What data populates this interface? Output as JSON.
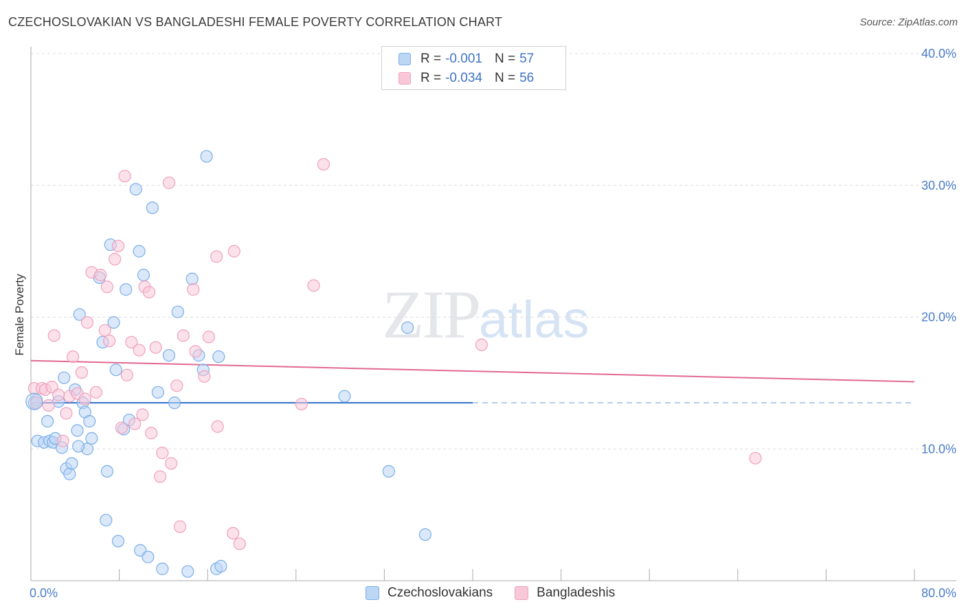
{
  "title": "CZECHOSLOVAKIAN VS BANGLADESHI FEMALE POVERTY CORRELATION CHART",
  "source": "Source: ZipAtlas.com",
  "watermark": {
    "zip": "ZIP",
    "atlas": "atlas"
  },
  "legend": {
    "rows": [
      {
        "r_label": "R =",
        "r_value": "-0.001",
        "n_label": "N =",
        "n_value": "57"
      },
      {
        "r_label": "R =",
        "r_value": "-0.034",
        "n_label": "N =",
        "n_value": "56"
      }
    ]
  },
  "bottom_legend": [
    "Czechoslovakians",
    "Bangladeshis"
  ],
  "colors": {
    "blue": "#7aaee8",
    "blue_fill": "#bcd6f5",
    "blue_line": "#2e6fc9",
    "pink": "#f0a0bc",
    "pink_fill": "#f8c8d8",
    "pink_line": "#e2688f"
  },
  "chart_data": {
    "type": "scatter",
    "title": "CZECHOSLOVAKIAN VS BANGLADESHI FEMALE POVERTY CORRELATION CHART",
    "xlabel": "",
    "ylabel": "Female Poverty",
    "xlim": [
      0,
      80
    ],
    "ylim": [
      0,
      40
    ],
    "x_tick_labels": [
      "0.0%",
      "80.0%"
    ],
    "y_ticks": [
      10,
      20,
      30,
      40
    ],
    "y_tick_labels": [
      "10.0%",
      "20.0%",
      "30.0%",
      "40.0%"
    ],
    "series": [
      {
        "name": "Czechoslovakians",
        "trend": {
          "x": [
            0,
            40
          ],
          "y": [
            13.5,
            13.5
          ],
          "dashed_to": 80
        },
        "points": [
          [
            0.3,
            13.5
          ],
          [
            0.5,
            13.7
          ],
          [
            0.6,
            10.6
          ],
          [
            1.2,
            10.5
          ],
          [
            1.5,
            12.1
          ],
          [
            1.7,
            10.6
          ],
          [
            2.0,
            10.5
          ],
          [
            2.2,
            10.8
          ],
          [
            2.5,
            13.6
          ],
          [
            2.8,
            10.1
          ],
          [
            3.0,
            15.4
          ],
          [
            3.2,
            8.5
          ],
          [
            3.5,
            8.1
          ],
          [
            3.7,
            8.9
          ],
          [
            4.0,
            14.5
          ],
          [
            4.2,
            11.4
          ],
          [
            4.4,
            20.2
          ],
          [
            4.7,
            13.5
          ],
          [
            4.9,
            12.8
          ],
          [
            5.1,
            10.0
          ],
          [
            5.3,
            12.1
          ],
          [
            5.5,
            10.8
          ],
          [
            6.2,
            23.0
          ],
          [
            6.5,
            18.1
          ],
          [
            6.8,
            4.6
          ],
          [
            6.9,
            8.3
          ],
          [
            7.2,
            25.5
          ],
          [
            7.5,
            19.6
          ],
          [
            7.7,
            16.0
          ],
          [
            7.9,
            3.0
          ],
          [
            8.4,
            11.5
          ],
          [
            8.6,
            22.1
          ],
          [
            8.9,
            12.2
          ],
          [
            9.5,
            29.7
          ],
          [
            9.8,
            25.0
          ],
          [
            9.9,
            2.3
          ],
          [
            10.2,
            23.2
          ],
          [
            10.6,
            1.8
          ],
          [
            11.0,
            28.3
          ],
          [
            11.5,
            14.3
          ],
          [
            11.9,
            0.9
          ],
          [
            12.5,
            17.1
          ],
          [
            13.0,
            13.5
          ],
          [
            13.3,
            20.4
          ],
          [
            14.2,
            0.7
          ],
          [
            14.6,
            22.9
          ],
          [
            15.2,
            17.1
          ],
          [
            15.6,
            16.0
          ],
          [
            15.9,
            32.2
          ],
          [
            16.8,
            0.9
          ],
          [
            17.2,
            1.1
          ],
          [
            28.4,
            14.0
          ],
          [
            32.4,
            8.3
          ],
          [
            34.1,
            19.2
          ],
          [
            35.7,
            3.5
          ],
          [
            17.0,
            17.0
          ],
          [
            4.3,
            10.2
          ]
        ]
      },
      {
        "name": "Bangladeshis",
        "trend": {
          "x": [
            0,
            80
          ],
          "y": [
            16.7,
            15.1
          ]
        },
        "points": [
          [
            0.3,
            14.6
          ],
          [
            0.5,
            13.5
          ],
          [
            1.0,
            14.6
          ],
          [
            1.3,
            14.5
          ],
          [
            1.6,
            13.3
          ],
          [
            1.9,
            14.7
          ],
          [
            2.1,
            18.6
          ],
          [
            2.5,
            14.1
          ],
          [
            2.9,
            10.6
          ],
          [
            3.2,
            12.7
          ],
          [
            3.5,
            14.0
          ],
          [
            3.8,
            17.0
          ],
          [
            4.2,
            14.2
          ],
          [
            4.6,
            15.8
          ],
          [
            4.9,
            13.8
          ],
          [
            5.1,
            19.6
          ],
          [
            5.5,
            23.4
          ],
          [
            5.9,
            14.3
          ],
          [
            6.3,
            23.2
          ],
          [
            6.7,
            19.0
          ],
          [
            6.9,
            22.3
          ],
          [
            7.1,
            18.2
          ],
          [
            7.6,
            24.4
          ],
          [
            7.9,
            25.4
          ],
          [
            8.2,
            11.6
          ],
          [
            8.5,
            30.7
          ],
          [
            8.7,
            15.6
          ],
          [
            9.1,
            18.1
          ],
          [
            9.4,
            11.9
          ],
          [
            9.8,
            17.5
          ],
          [
            10.1,
            12.6
          ],
          [
            10.3,
            22.3
          ],
          [
            10.7,
            21.9
          ],
          [
            10.9,
            11.2
          ],
          [
            11.3,
            17.7
          ],
          [
            11.7,
            7.9
          ],
          [
            11.9,
            9.7
          ],
          [
            12.5,
            30.2
          ],
          [
            12.7,
            8.9
          ],
          [
            13.2,
            14.8
          ],
          [
            13.5,
            4.1
          ],
          [
            13.8,
            18.6
          ],
          [
            14.7,
            22.1
          ],
          [
            14.9,
            17.4
          ],
          [
            15.7,
            15.5
          ],
          [
            16.1,
            18.5
          ],
          [
            16.8,
            24.6
          ],
          [
            16.9,
            11.7
          ],
          [
            18.3,
            3.6
          ],
          [
            18.9,
            2.8
          ],
          [
            18.4,
            25.0
          ],
          [
            24.5,
            13.4
          ],
          [
            25.6,
            22.4
          ],
          [
            26.5,
            31.6
          ],
          [
            40.8,
            17.9
          ],
          [
            65.6,
            9.3
          ]
        ]
      }
    ]
  }
}
